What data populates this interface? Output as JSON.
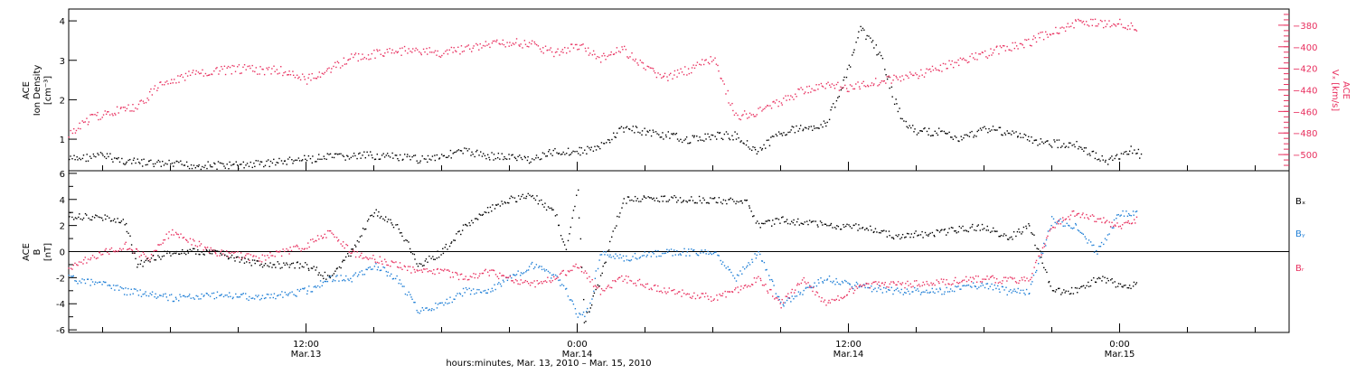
{
  "colors": {
    "black": "#000000",
    "pink": "#e8305f",
    "blue": "#1f7fd6"
  },
  "xaxis": {
    "caption": "hours:minutes, Mar. 13, 2010 – Mar. 15, 2010",
    "ticks": [
      {
        "time": "12:00",
        "date": "Mar.13",
        "hour": 12
      },
      {
        "time": "0:00",
        "date": "Mar.14",
        "hour": 24
      },
      {
        "time": "12:00",
        "date": "Mar.14",
        "hour": 36
      },
      {
        "time": "0:00",
        "date": "Mar.15",
        "hour": 48
      }
    ],
    "range_hours": [
      1.5,
      55.5
    ]
  },
  "chart_data": [
    {
      "type": "scatter",
      "panel": "top",
      "ylabel_left": [
        "ACE",
        "Ion Density",
        "[cm⁻³]"
      ],
      "ylabel_right": [
        "ACE",
        "Vₓ [km/s]"
      ],
      "ylim_left": [
        0.2,
        4.3
      ],
      "ylim_right": [
        -515,
        -365
      ],
      "yticks_left": [
        1,
        2,
        3,
        4
      ],
      "yticks_right": [
        -380,
        -400,
        -420,
        -440,
        -460,
        -480,
        -500
      ],
      "series": [
        {
          "axis": "left",
          "color": "black",
          "x": [
            1.5,
            3,
            4,
            5,
            7,
            9,
            11,
            13,
            15,
            17,
            19,
            20,
            21,
            22,
            23,
            24,
            25,
            26,
            27,
            28,
            29,
            30,
            31,
            32,
            33,
            34,
            35,
            36,
            36.5,
            37,
            37.5,
            38,
            38.5,
            39,
            40,
            41,
            42,
            43,
            44,
            45,
            46,
            47,
            47.5,
            48,
            48.5,
            49
          ],
          "values": [
            0.5,
            0.6,
            0.45,
            0.4,
            0.35,
            0.35,
            0.45,
            0.55,
            0.6,
            0.5,
            0.7,
            0.6,
            0.55,
            0.5,
            0.7,
            0.7,
            0.8,
            1.3,
            1.2,
            1.1,
            1.0,
            1.1,
            1.1,
            0.7,
            1.2,
            1.3,
            1.4,
            2.8,
            3.8,
            3.5,
            3.0,
            2.0,
            1.4,
            1.2,
            1.2,
            1.0,
            1.3,
            1.2,
            1.0,
            0.9,
            0.9,
            0.55,
            0.45,
            0.6,
            0.75,
            0.6
          ]
        },
        {
          "axis": "right",
          "color": "pink",
          "x": [
            1.5,
            2.5,
            3.5,
            4.5,
            5.5,
            7,
            9,
            11,
            12,
            13,
            14,
            16,
            18,
            20,
            21,
            22,
            23,
            24,
            25,
            26,
            27,
            28,
            29,
            30,
            31,
            32,
            33,
            34,
            35,
            36,
            37,
            38,
            39,
            40,
            41,
            42,
            43,
            44,
            45,
            46,
            47,
            48,
            48.8
          ],
          "values": [
            -480,
            -465,
            -460,
            -455,
            -435,
            -425,
            -420,
            -422,
            -430,
            -420,
            -410,
            -403,
            -405,
            -398,
            -395,
            -398,
            -405,
            -398,
            -410,
            -402,
            -420,
            -428,
            -420,
            -410,
            -465,
            -460,
            -450,
            -440,
            -435,
            -438,
            -432,
            -430,
            -425,
            -420,
            -412,
            -407,
            -400,
            -395,
            -385,
            -378,
            -378,
            -378,
            -382
          ]
        }
      ]
    },
    {
      "type": "line",
      "panel": "bottom",
      "ylabel": [
        "ACE",
        "B",
        "[nT]"
      ],
      "ylim": [
        -6.2,
        6.2
      ],
      "yticks": [
        6,
        4,
        2,
        0,
        -2,
        -4,
        -6
      ],
      "zero_line": true,
      "series": [
        {
          "name": "Bₓ",
          "color": "black",
          "x": [
            1.5,
            3,
            4,
            4.5,
            6,
            8,
            10,
            12,
            13,
            14,
            15,
            16,
            17,
            18,
            19,
            20,
            21,
            22,
            23,
            23.5,
            24,
            24.3,
            25,
            26,
            28,
            30,
            31.5,
            32,
            33,
            34,
            36,
            37,
            38,
            40,
            42,
            43,
            44,
            45,
            46,
            47,
            48,
            48.8
          ],
          "values": [
            2.8,
            2.6,
            2.2,
            -1,
            0,
            0,
            -1,
            -1,
            -2,
            0,
            3.2,
            2,
            -1,
            0,
            2,
            3.2,
            4,
            4.3,
            3,
            0,
            5,
            -5.5,
            -2,
            4.0,
            4.1,
            4.0,
            3.8,
            2,
            2.5,
            2.2,
            2,
            1.8,
            1.2,
            1.5,
            2.0,
            1.0,
            2,
            -3,
            -3,
            -2,
            -2.5,
            -2.6
          ]
        },
        {
          "name": "Bᵧ",
          "color": "blue",
          "x": [
            1.5,
            3,
            4,
            5,
            6,
            8,
            10,
            12,
            13,
            14,
            15,
            16,
            17,
            18,
            19,
            20,
            21,
            22,
            23,
            23.5,
            24,
            24.5,
            25,
            26,
            28,
            30,
            31,
            32,
            33,
            34,
            35,
            36,
            38,
            40,
            42,
            43,
            44,
            45,
            46,
            47,
            48,
            48.8
          ],
          "values": [
            -2,
            -2.5,
            -3,
            -3.2,
            -3.5,
            -3.3,
            -3.5,
            -3,
            -2,
            -2,
            -1,
            -2,
            -4.5,
            -4,
            -3,
            -3,
            -2,
            -1,
            -2,
            -3,
            -5,
            -4.5,
            0,
            -0.5,
            0,
            0,
            -2,
            0,
            -4,
            -3,
            -2,
            -2.5,
            -3,
            -3,
            -2.5,
            -3,
            -3,
            2.5,
            2.0,
            0,
            3,
            3
          ]
        },
        {
          "name": "Bᵣ",
          "color": "pink",
          "x": [
            1.5,
            3,
            4,
            5,
            6,
            8,
            10,
            12,
            13,
            14,
            15,
            16,
            17,
            18,
            19,
            20,
            21,
            22,
            23,
            24,
            25,
            26,
            28,
            30,
            31,
            32,
            33,
            34,
            35,
            36,
            37,
            38,
            40,
            42,
            43,
            44,
            45,
            46,
            47,
            48,
            48.8
          ],
          "values": [
            -1.2,
            0,
            0.5,
            -0.5,
            1.5,
            0,
            -0.5,
            0.5,
            1.5,
            0,
            -0.5,
            -1,
            -1.5,
            -1.5,
            -2,
            -1.5,
            -2,
            -2.5,
            -2,
            -1,
            -3,
            -2,
            -3,
            -3.5,
            -3,
            -2,
            -4,
            -2,
            -4,
            -3,
            -2.5,
            -2.5,
            -2.3,
            -2,
            -2.2,
            -2,
            2,
            3,
            2.5,
            2,
            2.5
          ]
        }
      ]
    }
  ]
}
